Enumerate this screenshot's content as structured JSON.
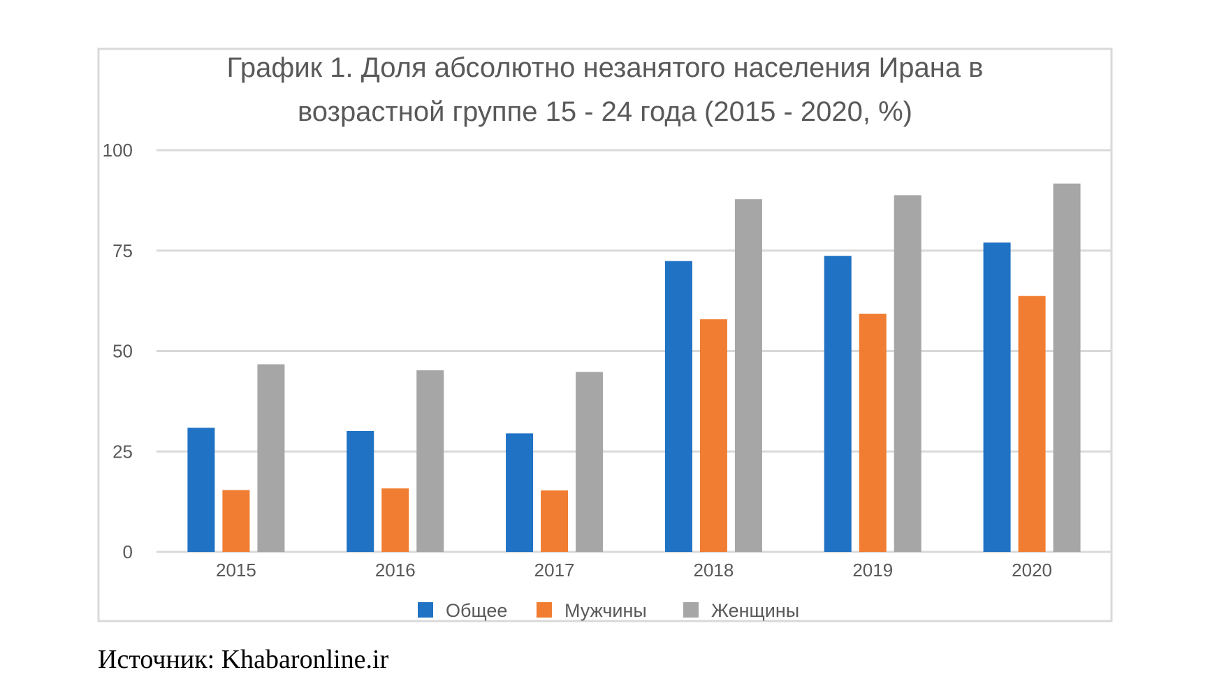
{
  "chart_data": {
    "type": "bar",
    "title_lines": [
      "График 1. Доля абсолютно незанятого населения Ирана в",
      "возрастной группе 15 - 24 года (2015 - 2020, %)"
    ],
    "categories": [
      "2015",
      "2016",
      "2017",
      "2018",
      "2019",
      "2020"
    ],
    "series": [
      {
        "name": "Общее",
        "color": "#1f72c4",
        "values": [
          30.9,
          30.1,
          29.5,
          72.4,
          73.7,
          77.0
        ]
      },
      {
        "name": "Мужчины",
        "color": "#f07d32",
        "values": [
          15.4,
          15.8,
          15.3,
          57.9,
          59.3,
          63.7
        ]
      },
      {
        "name": "Женщины",
        "color": "#a6a6a6",
        "values": [
          46.7,
          45.2,
          44.8,
          87.8,
          88.8,
          91.7
        ]
      }
    ],
    "ylim": [
      0,
      100
    ],
    "yticks": [
      0,
      25,
      50,
      75,
      100
    ],
    "grid": true,
    "legend": "bottom"
  },
  "caption": "Источник: Khabaronline.ir"
}
